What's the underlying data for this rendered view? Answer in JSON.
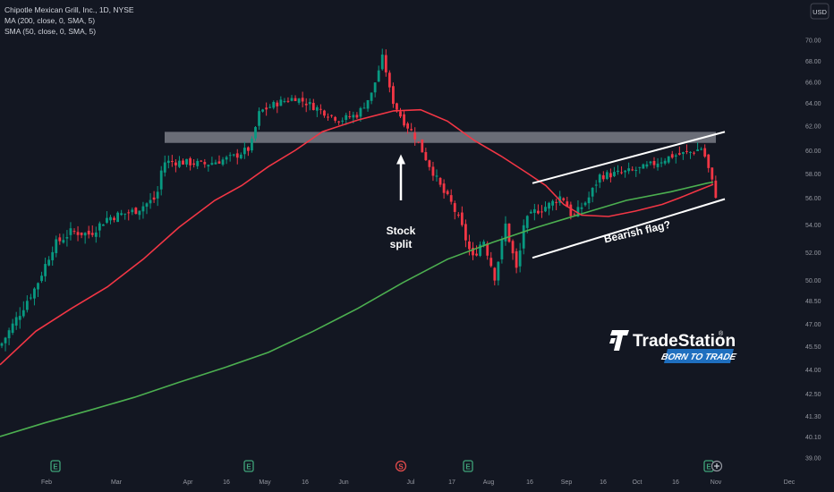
{
  "legend": {
    "title": "Chipotle Mexican Grill, Inc., 1D, NYSE",
    "ma200": "MA (200, close, 0, SMA, 5)",
    "ma50": "SMA (50, close, 0, SMA, 5)"
  },
  "currency_button": "USD",
  "chart_data": {
    "type": "candlestick",
    "title": "Chipotle Mexican Grill, Inc., 1D, NYSE",
    "ylim": [
      38.5,
      71.0
    ],
    "y_ticks": [
      "70.00",
      "68.00",
      "66.00",
      "64.00",
      "62.00",
      "60.00",
      "58.00",
      "56.00",
      "54.00",
      "52.00",
      "50.00",
      "48.50",
      "47.00",
      "45.50",
      "44.00",
      "42.50",
      "41.30",
      "40.10",
      "39.00"
    ],
    "x_ticks": [
      "Feb",
      "Mar",
      "Apr",
      "16",
      "May",
      "16",
      "Jun",
      "Jul",
      "17",
      "Aug",
      "16",
      "Sep",
      "16",
      "Oct",
      "16",
      "Nov",
      "Dec"
    ],
    "series": [
      {
        "name": "MA (200, close, 0, SMA, 5)",
        "color": "#4caf50",
        "role": "ma200"
      },
      {
        "name": "SMA (50, close, 0, SMA, 5)",
        "color": "#f23645",
        "role": "ma50"
      }
    ],
    "candle_close_anchors": [
      [
        0,
        45.5
      ],
      [
        20,
        47.5
      ],
      [
        40,
        49.5
      ],
      [
        60,
        52.5
      ],
      [
        80,
        53.5
      ],
      [
        100,
        53.3
      ],
      [
        120,
        54.5
      ],
      [
        150,
        55.0
      ],
      [
        175,
        56.0
      ],
      [
        182,
        59.0
      ],
      [
        200,
        59.0
      ],
      [
        230,
        58.8
      ],
      [
        260,
        59.4
      ],
      [
        280,
        60.2
      ],
      [
        290,
        63.2
      ],
      [
        310,
        64.0
      ],
      [
        330,
        64.5
      ],
      [
        360,
        63.3
      ],
      [
        380,
        62.5
      ],
      [
        400,
        63.0
      ],
      [
        415,
        64.8
      ],
      [
        428,
        68.5
      ],
      [
        437,
        64.5
      ],
      [
        450,
        62.5
      ],
      [
        465,
        61.0
      ],
      [
        478,
        59.0
      ],
      [
        495,
        56.5
      ],
      [
        505,
        55.5
      ],
      [
        515,
        54.0
      ],
      [
        528,
        51.5
      ],
      [
        540,
        53.0
      ],
      [
        553,
        50.2
      ],
      [
        565,
        54.0
      ],
      [
        578,
        50.5
      ],
      [
        585,
        54.0
      ],
      [
        598,
        55.0
      ],
      [
        615,
        55.5
      ],
      [
        628,
        56.2
      ],
      [
        640,
        54.5
      ],
      [
        658,
        56.0
      ],
      [
        670,
        57.8
      ],
      [
        690,
        58.0
      ],
      [
        705,
        58.2
      ],
      [
        720,
        58.5
      ],
      [
        735,
        59.0
      ],
      [
        750,
        59.5
      ],
      [
        770,
        59.8
      ],
      [
        785,
        60.2
      ],
      [
        795,
        57.5
      ],
      [
        800,
        56.2
      ]
    ],
    "ma200_points": [
      [
        0,
        40.1
      ],
      [
        50,
        40.9
      ],
      [
        100,
        41.6
      ],
      [
        150,
        42.3
      ],
      [
        200,
        43.2
      ],
      [
        250,
        44.1
      ],
      [
        300,
        45.1
      ],
      [
        350,
        46.5
      ],
      [
        400,
        48.0
      ],
      [
        450,
        49.8
      ],
      [
        500,
        51.5
      ],
      [
        550,
        52.7
      ],
      [
        600,
        53.8
      ],
      [
        650,
        54.8
      ],
      [
        700,
        55.8
      ],
      [
        750,
        56.5
      ],
      [
        790,
        57.2
      ],
      [
        797,
        57.3
      ]
    ],
    "ma50_points": [
      [
        0,
        44.3
      ],
      [
        40,
        46.5
      ],
      [
        80,
        48.0
      ],
      [
        120,
        49.5
      ],
      [
        160,
        51.5
      ],
      [
        200,
        53.8
      ],
      [
        240,
        55.8
      ],
      [
        270,
        57.0
      ],
      [
        300,
        58.6
      ],
      [
        330,
        60.0
      ],
      [
        360,
        61.5
      ],
      [
        400,
        62.5
      ],
      [
        440,
        63.3
      ],
      [
        470,
        63.4
      ],
      [
        500,
        62.4
      ],
      [
        530,
        60.8
      ],
      [
        560,
        59.5
      ],
      [
        590,
        58.0
      ],
      [
        610,
        57.0
      ],
      [
        630,
        55.5
      ],
      [
        650,
        54.7
      ],
      [
        680,
        54.6
      ],
      [
        710,
        55.0
      ],
      [
        740,
        55.5
      ],
      [
        760,
        56.0
      ],
      [
        780,
        56.6
      ],
      [
        797,
        57.1
      ]
    ],
    "annotations": [
      {
        "type": "zone",
        "y_range": [
          60.6,
          61.5
        ],
        "x_from": 184,
        "x_to": 800
      },
      {
        "type": "channel_upper",
        "points": [
          [
            595,
            57.2
          ],
          [
            810,
            61.5
          ]
        ]
      },
      {
        "type": "channel_lower",
        "points": [
          [
            595,
            51.6
          ],
          [
            810,
            55.9
          ]
        ]
      },
      {
        "type": "arrow",
        "x": 448,
        "y_from": 55.8,
        "y_to": 59.5
      },
      {
        "type": "label",
        "text_lines": [
          "Stock",
          "split"
        ]
      },
      {
        "type": "label",
        "text_lines": [
          "Bearish flag?"
        ],
        "rotation": -13
      }
    ]
  },
  "annotation_labels": {
    "stock": "Stock",
    "split": "split",
    "bearish_flag": "Bearish flag?"
  },
  "markers": [
    {
      "x": 62,
      "icon": "earnings-icon",
      "glyph": "E",
      "color": "#3fa47a"
    },
    {
      "x": 278,
      "icon": "earnings-icon",
      "glyph": "E",
      "color": "#3fa47a"
    },
    {
      "x": 448,
      "icon": "dividend-icon",
      "glyph": "S",
      "color": "#e04b4b"
    },
    {
      "x": 523,
      "icon": "earnings-icon",
      "glyph": "E",
      "color": "#3fa47a"
    },
    {
      "x": 792,
      "icon": "earnings-icon",
      "glyph": "E",
      "color": "#3fa47a"
    }
  ],
  "logo": {
    "name": "TradeStation",
    "registered": "®",
    "tagline": "BORN TO TRADE"
  }
}
